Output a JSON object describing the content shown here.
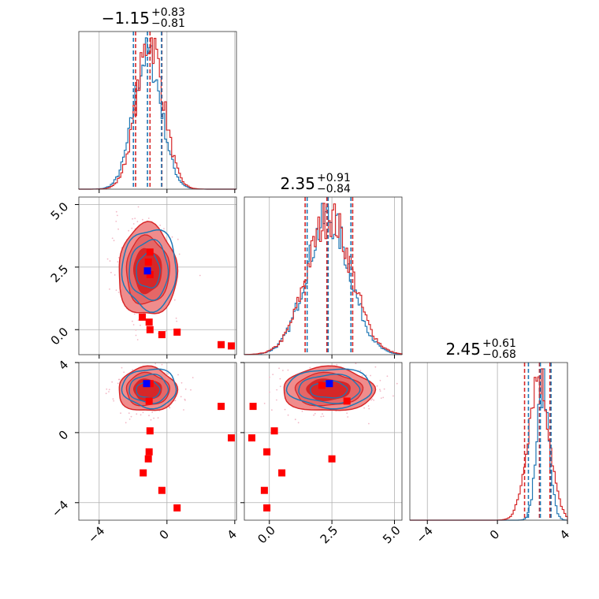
{
  "colors": {
    "red": "#d62728",
    "blue": "#1f77b4",
    "red_fill_dark": "#d62728",
    "red_fill_light": "#f08c8c",
    "grid": "#b0b0b0",
    "marker_red": "#ff0000",
    "marker_blue": "#0000ff",
    "scatter_pink": "#f2b8c6"
  },
  "chart_data": {
    "type": "corner",
    "grid": true,
    "titles": [
      {
        "median": "−1.15",
        "plus": "+0.83",
        "minus": "−0.81"
      },
      {
        "median": "2.35",
        "plus": "+0.91",
        "minus": "−0.84"
      },
      {
        "median": "2.45",
        "plus": "+0.61",
        "minus": "−0.68"
      }
    ],
    "ranges": [
      [
        -5.2,
        4.1
      ],
      [
        -1.0,
        5.3
      ],
      [
        -5.0,
        4.0
      ]
    ],
    "ticks": [
      {
        "values": [
          -4,
          0,
          4
        ],
        "labels": [
          "−4",
          "0",
          "4"
        ]
      },
      {
        "values": [
          0.0,
          2.5,
          5.0
        ],
        "labels": [
          "0.0",
          "2.5",
          "5.0"
        ]
      },
      {
        "values": [
          -4,
          0,
          4
        ],
        "labels": [
          "−4",
          "0",
          "4"
        ]
      }
    ],
    "marginals": [
      {
        "param": 0,
        "quantile_lines": {
          "blue": [
            -1.98,
            -1.15,
            -0.32
          ],
          "red": [
            -1.85,
            -1.0,
            -0.3
          ]
        },
        "hist_center": -1.15,
        "hist_sigma": 0.82,
        "red_center": -1.0,
        "red_sigma": 0.8
      },
      {
        "param": 1,
        "quantile_lines": {
          "blue": [
            1.51,
            2.35,
            3.26
          ],
          "red": [
            1.43,
            2.3,
            3.33
          ]
        },
        "hist_center": 2.35,
        "hist_sigma": 0.87,
        "red_center": 2.4,
        "red_sigma": 0.9
      },
      {
        "param": 2,
        "quantile_lines": {
          "blue": [
            1.77,
            2.45,
            3.06
          ],
          "red": [
            1.55,
            2.4,
            3.0
          ]
        },
        "hist_center": 2.6,
        "hist_sigma": 0.35,
        "red_center": 2.35,
        "red_sigma": 0.6
      }
    ],
    "joint": [
      {
        "x_param": 0,
        "y_param": 1,
        "center": [
          -1.15,
          2.35
        ],
        "sigma": [
          0.82,
          0.87
        ],
        "blue_marker": [
          -1.15,
          2.35
        ],
        "red_markers": [
          [
            -1.0,
            3.1
          ],
          [
            -1.1,
            2.7
          ],
          [
            -1.0,
            2.2
          ],
          [
            -1.45,
            0.5
          ],
          [
            -1.05,
            0.3
          ],
          [
            -1.0,
            0.0
          ],
          [
            -0.3,
            -0.2
          ],
          [
            0.6,
            -0.1
          ],
          [
            3.2,
            -0.6
          ],
          [
            3.8,
            -0.65
          ]
        ]
      },
      {
        "x_param": 0,
        "y_param": 2,
        "center": [
          -1.15,
          2.45
        ],
        "sigma": [
          0.82,
          0.6
        ],
        "blue_marker": [
          -1.2,
          2.8
        ],
        "red_markers": [
          [
            -1.0,
            2.8
          ],
          [
            -1.05,
            1.8
          ],
          [
            -1.0,
            0.1
          ],
          [
            -1.05,
            -1.1
          ],
          [
            -1.1,
            -1.5
          ],
          [
            -1.4,
            -2.3
          ],
          [
            -0.3,
            -3.3
          ],
          [
            0.6,
            -4.3
          ],
          [
            3.2,
            1.5
          ],
          [
            3.8,
            -0.3
          ]
        ]
      },
      {
        "x_param": 1,
        "y_param": 2,
        "center": [
          2.35,
          2.45
        ],
        "sigma": [
          0.87,
          0.6
        ],
        "blue_marker": [
          2.4,
          2.8
        ],
        "red_markers": [
          [
            2.1,
            2.7
          ],
          [
            3.1,
            1.8
          ],
          [
            0.2,
            0.1
          ],
          [
            -0.1,
            -1.1
          ],
          [
            -0.7,
            -0.3
          ],
          [
            -0.65,
            1.5
          ],
          [
            -0.2,
            -3.3
          ],
          [
            -0.1,
            -4.3
          ],
          [
            2.5,
            -1.5
          ],
          [
            0.5,
            -2.3
          ]
        ]
      }
    ]
  }
}
